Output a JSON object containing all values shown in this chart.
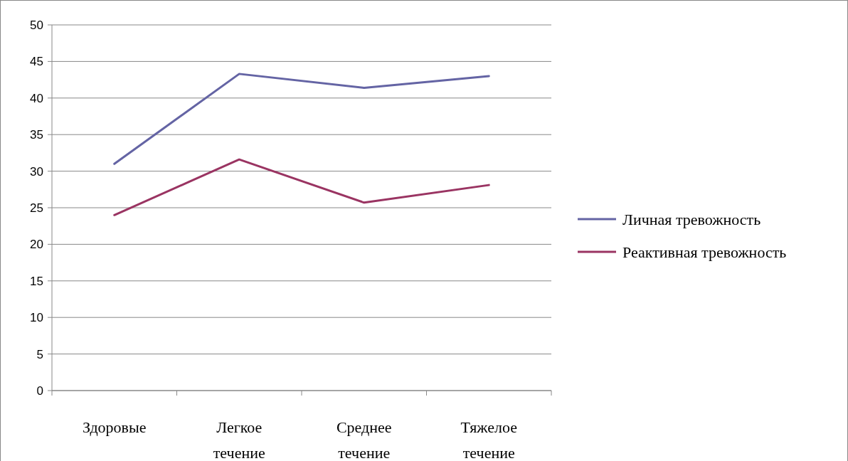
{
  "chart_data": {
    "type": "line",
    "categories": [
      "Здоровые",
      "Легкое течение",
      "Среднее течение",
      "Тяжелое течение"
    ],
    "series": [
      {
        "name": "Личная тревожность",
        "color": "#6464a4",
        "values": [
          31,
          43.3,
          41.4,
          43
        ]
      },
      {
        "name": "Реактивная тревожность",
        "color": "#9a3462",
        "values": [
          24,
          31.6,
          25.7,
          28.1
        ]
      }
    ],
    "ylim": [
      0,
      50
    ],
    "yticks": [
      0,
      5,
      10,
      15,
      20,
      25,
      30,
      35,
      40,
      45,
      50
    ],
    "grid": "y",
    "legend": "right",
    "marker": "none",
    "line_style": "solid"
  }
}
